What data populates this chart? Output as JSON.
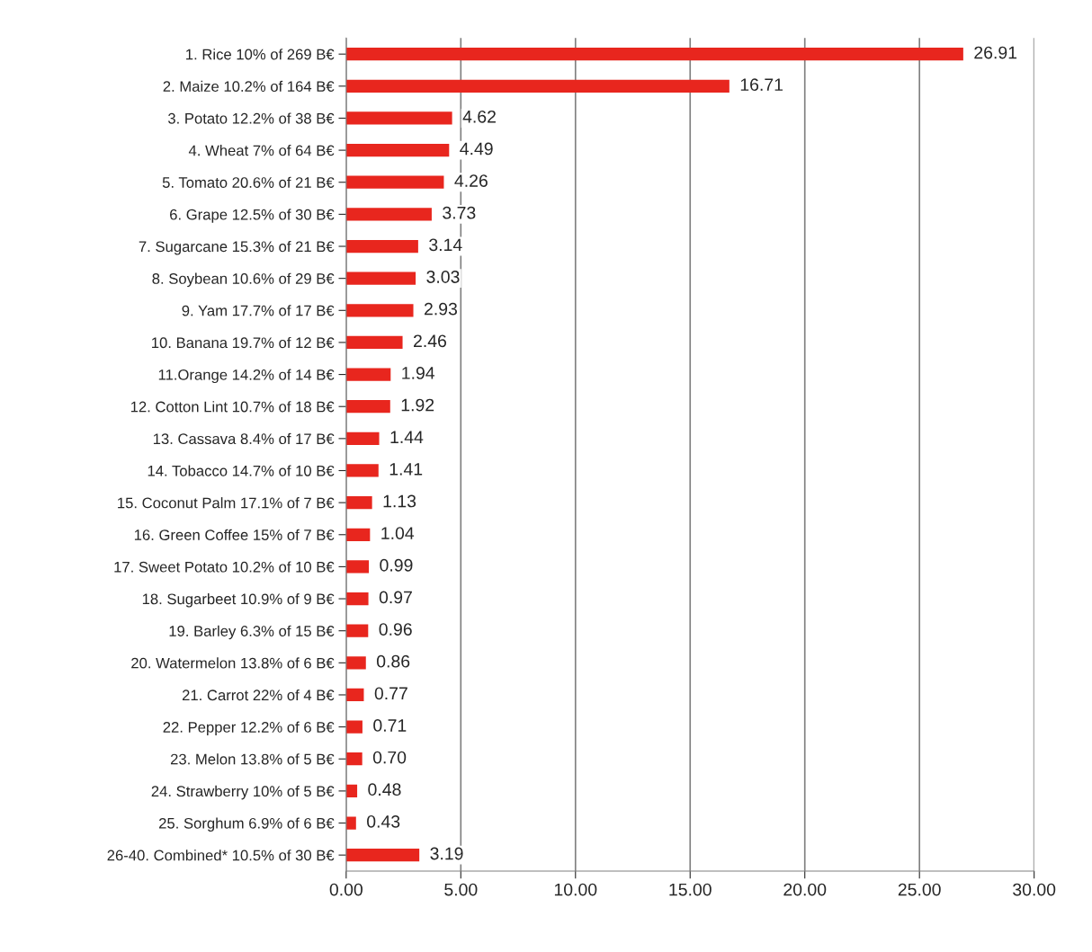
{
  "chart_data": {
    "type": "bar",
    "orientation": "horizontal",
    "categories": [
      "1. Rice 10% of 269 B€",
      "2. Maize 10.2% of 164 B€",
      "3. Potato 12.2% of 38 B€",
      "4. Wheat 7% of 64 B€",
      "5. Tomato 20.6% of 21 B€",
      "6. Grape 12.5% of 30 B€",
      "7. Sugarcane 15.3% of 21 B€",
      "8. Soybean 10.6% of 29 B€",
      "9. Yam 17.7% of 17 B€",
      "10. Banana 19.7% of 12 B€",
      "11.Orange 14.2% of 14 B€",
      "12. Cotton Lint 10.7% of 18 B€",
      "13. Cassava 8.4% of 17 B€",
      "14. Tobacco 14.7% of 10 B€",
      "15. Coconut Palm 17.1% of 7 B€",
      "16. Green Coffee 15% of 7 B€",
      "17. Sweet Potato 10.2% of 10 B€",
      "18. Sugarbeet 10.9% of 9 B€",
      "19. Barley 6.3% of 15 B€",
      "20. Watermelon 13.8% of 6 B€",
      "21. Carrot 22% of 4 B€",
      "22. Pepper 12.2% of 6 B€",
      "23. Melon 13.8% of 5 B€",
      "24. Strawberry 10% of 5 B€",
      "25. Sorghum 6.9% of 6 B€",
      "26-40. Combined* 10.5% of 30 B€"
    ],
    "values": [
      26.91,
      16.71,
      4.62,
      4.49,
      4.26,
      3.73,
      3.14,
      3.03,
      2.93,
      2.46,
      1.94,
      1.92,
      1.44,
      1.41,
      1.13,
      1.04,
      0.99,
      0.97,
      0.96,
      0.86,
      0.77,
      0.71,
      0.7,
      0.48,
      0.43,
      3.19
    ],
    "value_labels": [
      "26.91",
      "16.71",
      "4.62",
      "4.49",
      "4.26",
      "3.73",
      "3.14",
      "3.03",
      "2.93",
      "2.46",
      "1.94",
      "1.92",
      "1.44",
      "1.41",
      "1.13",
      "1.04",
      "0.99",
      "0.97",
      "0.96",
      "0.86",
      "0.77",
      "0.71",
      "0.70",
      "0.48",
      "0.43",
      "3.19"
    ],
    "color": "#e8261e",
    "xlim": [
      0,
      30
    ],
    "xticks": [
      {
        "value": 0,
        "label": "0.00"
      },
      {
        "value": 5,
        "label": "5.00"
      },
      {
        "value": 10,
        "label": "10.00"
      },
      {
        "value": 15,
        "label": "15.00"
      },
      {
        "value": 20,
        "label": "20.00"
      },
      {
        "value": 25,
        "label": "25.00"
      },
      {
        "value": 30,
        "label": "30.00"
      }
    ],
    "grid": "x",
    "legend": false
  }
}
